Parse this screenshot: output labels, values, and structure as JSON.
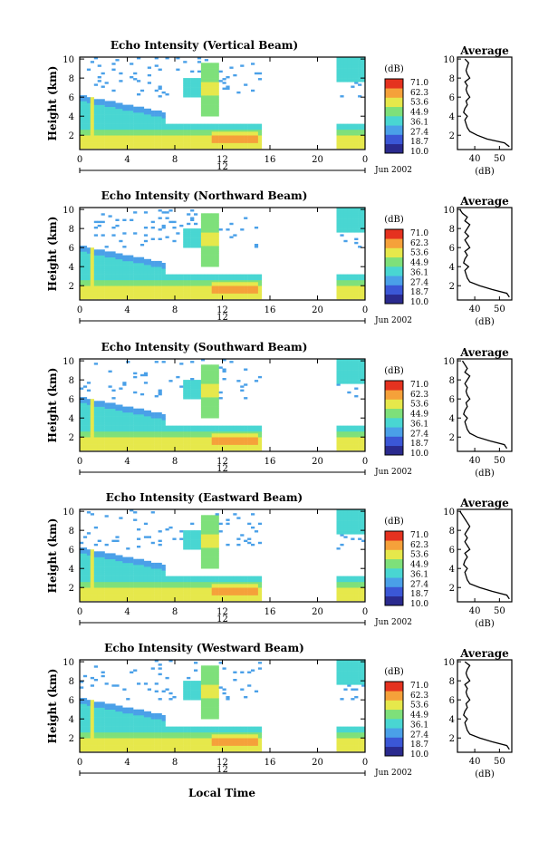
{
  "figure": {
    "xlabel": "Local Time",
    "date_label": "Jun 2002",
    "colorbar_unit": "(dB)",
    "colorbar_ticks": [
      "71.0",
      "62.3",
      "53.6",
      "44.9",
      "36.1",
      "27.4",
      "18.7",
      "10.0"
    ],
    "colormap": [
      "#2a2a8e",
      "#3b57d6",
      "#4aa0e8",
      "#49d6d2",
      "#7ee07a",
      "#e6e84b",
      "#f5a13a",
      "#e5321f"
    ],
    "avg_xlabel": "(dB)"
  },
  "chart_data": [
    {
      "type": "heatmap",
      "title": "Echo Intensity (Vertical Beam)",
      "ylabel": "Height (km)",
      "x_ticks": [
        "0",
        "4",
        "8",
        "12",
        "16",
        "20",
        "0"
      ],
      "x_mid_label": "12",
      "y_ticks": [
        "2",
        "4",
        "6",
        "8",
        "10"
      ],
      "xlim": [
        0,
        24
      ],
      "ylim": [
        0.5,
        10.2
      ],
      "data_gap_hours": [
        15.3,
        21.6
      ],
      "colorbar_range_db": [
        10.0,
        71.0
      ],
      "average": {
        "title": "Average",
        "xlabel": "(dB)",
        "x_ticks": [
          "40",
          "50"
        ],
        "xlim": [
          33,
          55
        ],
        "y_ticks": [
          "2",
          "4",
          "6",
          "8",
          "10"
        ],
        "height_km": [
          0.8,
          1.2,
          1.6,
          2.0,
          2.4,
          2.8,
          3.2,
          3.6,
          4.0,
          4.4,
          4.8,
          5.2,
          5.6,
          6.0,
          6.4,
          6.8,
          7.2,
          7.6,
          8.0,
          8.4,
          8.8,
          9.2,
          9.6,
          10.0
        ],
        "value_db": [
          54,
          52,
          45,
          41,
          38,
          37,
          36.5,
          36,
          37,
          35.5,
          36,
          37,
          36.5,
          38,
          37,
          36.5,
          37,
          36,
          38,
          37,
          36.5,
          37,
          37.5,
          36
        ]
      }
    },
    {
      "type": "heatmap",
      "title": "Echo Intensity (Northward Beam)",
      "ylabel": "Height (km)",
      "x_ticks": [
        "0",
        "4",
        "8",
        "12",
        "16",
        "20",
        "0"
      ],
      "x_mid_label": "12",
      "y_ticks": [
        "2",
        "4",
        "6",
        "8",
        "10"
      ],
      "xlim": [
        0,
        24
      ],
      "ylim": [
        0.5,
        10.2
      ],
      "data_gap_hours": [
        15.3,
        21.6
      ],
      "colorbar_range_db": [
        10.0,
        71.0
      ],
      "average": {
        "title": "Average",
        "xlabel": "(dB)",
        "x_ticks": [
          "40",
          "50"
        ],
        "xlim": [
          33,
          55
        ],
        "y_ticks": [
          "2",
          "4",
          "6",
          "8",
          "10"
        ],
        "height_km": [
          0.8,
          1.2,
          1.6,
          2.0,
          2.4,
          2.8,
          3.2,
          3.6,
          4.0,
          4.4,
          4.8,
          5.2,
          5.6,
          6.0,
          6.4,
          6.8,
          7.2,
          7.6,
          8.0,
          8.4,
          8.8,
          9.2,
          9.6,
          10.0
        ],
        "value_db": [
          54,
          53,
          47,
          42,
          38,
          37,
          36.5,
          36,
          37.5,
          35.5,
          36,
          37,
          36,
          38,
          37,
          36,
          37.5,
          36,
          37,
          38,
          36,
          37,
          35,
          34
        ]
      }
    },
    {
      "type": "heatmap",
      "title": "Echo Intensity (Southward Beam)",
      "ylabel": "Height (km)",
      "x_ticks": [
        "0",
        "4",
        "8",
        "12",
        "16",
        "20",
        "0"
      ],
      "x_mid_label": "12",
      "y_ticks": [
        "2",
        "4",
        "6",
        "8",
        "10"
      ],
      "xlim": [
        0,
        24
      ],
      "ylim": [
        0.5,
        10.2
      ],
      "data_gap_hours": [
        15.3,
        21.6
      ],
      "colorbar_range_db": [
        10.0,
        71.0
      ],
      "average": {
        "title": "Average",
        "xlabel": "(dB)",
        "x_ticks": [
          "40",
          "50"
        ],
        "xlim": [
          33,
          55
        ],
        "y_ticks": [
          "2",
          "4",
          "6",
          "8",
          "10"
        ],
        "height_km": [
          0.8,
          1.2,
          1.6,
          2.0,
          2.4,
          2.8,
          3.2,
          3.6,
          4.0,
          4.4,
          4.8,
          5.2,
          5.6,
          6.0,
          6.4,
          6.8,
          7.2,
          7.6,
          8.0,
          8.4,
          8.8,
          9.2,
          9.6,
          10.0
        ],
        "value_db": [
          53,
          52,
          46,
          41,
          38,
          37,
          36.5,
          36,
          37,
          35.5,
          36,
          37,
          36.5,
          38,
          37,
          36.5,
          37,
          36,
          37,
          38,
          36,
          37,
          36,
          35
        ]
      }
    },
    {
      "type": "heatmap",
      "title": "Echo Intensity (Eastward Beam)",
      "ylabel": "Height (km)",
      "x_ticks": [
        "0",
        "4",
        "8",
        "12",
        "16",
        "20",
        "0"
      ],
      "x_mid_label": "12",
      "y_ticks": [
        "2",
        "4",
        "6",
        "8",
        "10"
      ],
      "xlim": [
        0,
        24
      ],
      "ylim": [
        0.5,
        10.2
      ],
      "data_gap_hours": [
        15.3,
        21.6
      ],
      "colorbar_range_db": [
        10.0,
        71.0
      ],
      "average": {
        "title": "Average",
        "xlabel": "(dB)",
        "x_ticks": [
          "40",
          "50"
        ],
        "xlim": [
          33,
          55
        ],
        "y_ticks": [
          "2",
          "4",
          "6",
          "8",
          "10"
        ],
        "height_km": [
          0.8,
          1.2,
          1.6,
          2.0,
          2.4,
          2.8,
          3.2,
          3.6,
          4.0,
          4.4,
          4.8,
          5.2,
          5.6,
          6.0,
          6.4,
          6.8,
          7.2,
          7.6,
          8.0,
          8.4,
          8.8,
          9.2,
          9.6,
          10.0
        ],
        "value_db": [
          54,
          53,
          47,
          42,
          38,
          37,
          36.5,
          36,
          37,
          35.5,
          36,
          37,
          36,
          38,
          37,
          36,
          37,
          36,
          37,
          38,
          37,
          36,
          35,
          34
        ]
      }
    },
    {
      "type": "heatmap",
      "title": "Echo Intensity (Westward Beam)",
      "ylabel": "Height (km)",
      "x_ticks": [
        "0",
        "4",
        "8",
        "12",
        "16",
        "20",
        "0"
      ],
      "x_mid_label": "12",
      "y_ticks": [
        "2",
        "4",
        "6",
        "8",
        "10"
      ],
      "xlim": [
        0,
        24
      ],
      "ylim": [
        0.5,
        10.2
      ],
      "data_gap_hours": [
        15.3,
        21.6
      ],
      "colorbar_range_db": [
        10.0,
        71.0
      ],
      "average": {
        "title": "Average",
        "xlabel": "(dB)",
        "x_ticks": [
          "40",
          "50"
        ],
        "xlim": [
          33,
          55
        ],
        "y_ticks": [
          "2",
          "4",
          "6",
          "8",
          "10"
        ],
        "height_km": [
          0.8,
          1.2,
          1.6,
          2.0,
          2.4,
          2.8,
          3.2,
          3.6,
          4.0,
          4.4,
          4.8,
          5.2,
          5.6,
          6.0,
          6.4,
          6.8,
          7.2,
          7.6,
          8.0,
          8.4,
          8.8,
          9.2,
          9.6,
          10.0
        ],
        "value_db": [
          54,
          53,
          47,
          42,
          38,
          37,
          36.5,
          36,
          37,
          35.5,
          36,
          37,
          36.5,
          38,
          37,
          36.5,
          37,
          36,
          38,
          37,
          36.5,
          37,
          38,
          36
        ]
      }
    }
  ]
}
